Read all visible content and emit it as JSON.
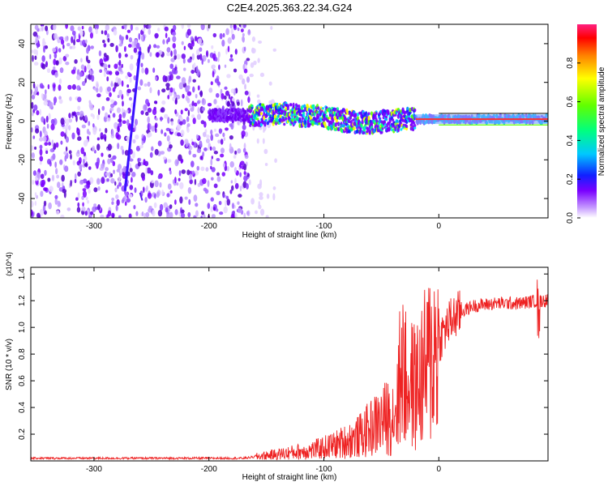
{
  "title": "C2E4.2025.363.22.34.G24",
  "chart_data": [
    {
      "type": "heatmap",
      "name": "spectrogram",
      "xlabel": "Height of straight line (km)",
      "ylabel": "Frequency (Hz)",
      "xlim": [
        -355,
        95
      ],
      "ylim": [
        -50,
        50
      ],
      "xticks": [
        -300,
        -200,
        -100,
        0
      ],
      "yticks": [
        -40,
        -20,
        0,
        20,
        40
      ],
      "colorbar": {
        "label": "Normalized spectral amplitude",
        "range": [
          0,
          1
        ],
        "ticks": [
          0.0,
          0.2,
          0.4,
          0.6,
          0.8
        ],
        "colors": [
          "#ffffff",
          "#c9a0ff",
          "#7a00ff",
          "#1020ff",
          "#00c8ff",
          "#00ff80",
          "#60ff00",
          "#ffff00",
          "#ff8000",
          "#ff0000",
          "#ff2080"
        ]
      },
      "features": {
        "noise_region_x": [
          -355,
          -165
        ],
        "signal_track": [
          {
            "x": -165,
            "f": 3
          },
          {
            "x": -140,
            "f": 4
          },
          {
            "x": -120,
            "f": 3
          },
          {
            "x": -100,
            "f": 2
          },
          {
            "x": -80,
            "f": 0
          },
          {
            "x": -60,
            "f": -1
          },
          {
            "x": -45,
            "f": 0
          },
          {
            "x": -30,
            "f": 1
          },
          {
            "x": -10,
            "f": 1
          },
          {
            "x": 0,
            "f": 1
          },
          {
            "x": 30,
            "f": 1
          },
          {
            "x": 95,
            "f": 1
          }
        ],
        "streak": {
          "x_start": -273,
          "f_start": -36,
          "x_end": -260,
          "f_end": 36
        }
      }
    },
    {
      "type": "line",
      "name": "snr",
      "xlabel": "Height of straight line (km)",
      "ylabel": "SNR (10 * v/v)",
      "y_multiplier": "(x10^4)",
      "xlim": [
        -355,
        95
      ],
      "ylim": [
        0,
        1.45
      ],
      "xticks": [
        -300,
        -200,
        -100,
        0
      ],
      "yticks": [
        0.2,
        0.4,
        0.6,
        0.8,
        1.0,
        1.2,
        1.4
      ],
      "color": "#ee2222",
      "series": [
        {
          "name": "SNR",
          "x": [
            -355,
            -200,
            -170,
            -150,
            -130,
            -110,
            -90,
            -70,
            -50,
            -40,
            -30,
            -20,
            -10,
            0,
            10,
            20,
            30,
            50,
            70,
            85,
            95
          ],
          "y": [
            0.02,
            0.02,
            0.02,
            0.04,
            0.06,
            0.08,
            0.12,
            0.18,
            0.3,
            0.35,
            0.6,
            0.55,
            0.72,
            0.9,
            1.05,
            1.12,
            1.16,
            1.18,
            1.18,
            1.2,
            1.2
          ]
        }
      ]
    }
  ]
}
